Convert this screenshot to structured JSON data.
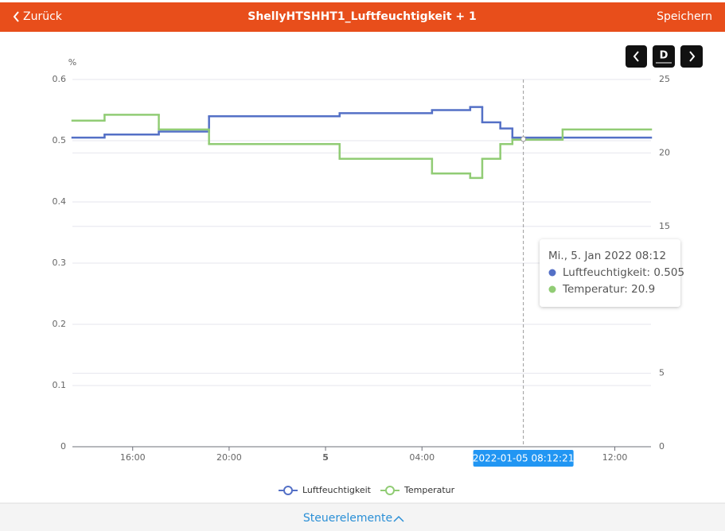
{
  "header": {
    "back": "Zurück",
    "title": "ShellyHTSHHT1_Luftfeuchtigkeit + 1",
    "save": "Speichern"
  },
  "period": "D",
  "chart_data": {
    "type": "line",
    "step": "after",
    "y_unit": "%",
    "x": [
      "2022-01-04T13:30",
      "2022-01-04T14:50",
      "2022-01-04T17:05",
      "2022-01-04T19:10",
      "2022-01-05T00:35",
      "2022-01-05T04:25",
      "2022-01-05T06:00",
      "2022-01-05T06:30",
      "2022-01-05T07:15",
      "2022-01-05T07:45",
      "2022-01-05T09:50"
    ],
    "xlim": [
      "2022-01-04T13:30",
      "2022-01-05T13:30"
    ],
    "xticks": [
      {
        "value": "2022-01-04T16:00",
        "label": "16:00"
      },
      {
        "value": "2022-01-04T20:00",
        "label": "20:00"
      },
      {
        "value": "2022-01-05T00:00",
        "label": "5"
      },
      {
        "value": "2022-01-05T04:00",
        "label": "04:00"
      },
      {
        "value": "2022-01-05T12:00",
        "label": "12:00"
      }
    ],
    "ylim": [
      0,
      0.6
    ],
    "yticks": [
      0,
      0.1,
      0.2,
      0.3,
      0.4,
      0.5,
      0.6
    ],
    "y2lim": [
      0,
      25
    ],
    "y2ticks": [
      0,
      5,
      15,
      20,
      25
    ],
    "grid": true,
    "legend": "bottom",
    "series": [
      {
        "name": "Luftfeuchtigkeit",
        "color": "#5470c6",
        "values": [
          0.505,
          0.51,
          0.515,
          0.54,
          0.545,
          0.55,
          0.555,
          0.53,
          0.52,
          0.505,
          0.505
        ]
      },
      {
        "name": "Temperatur",
        "color": "#91cc75",
        "axis": "y2",
        "values": [
          22.2,
          22.6,
          21.6,
          20.6,
          19.6,
          18.6,
          18.3,
          19.6,
          20.6,
          20.9,
          21.6
        ]
      }
    ],
    "crosshair": {
      "label": "2022-01-05 08:12:21"
    },
    "tooltip": {
      "title": "Mi., 5. Jan 2022 08:12",
      "lines": [
        "Luftfeuchtigkeit: 0.505",
        "Temperatur: 20.9"
      ]
    }
  },
  "footer": {
    "controls": "Steuerelemente"
  }
}
